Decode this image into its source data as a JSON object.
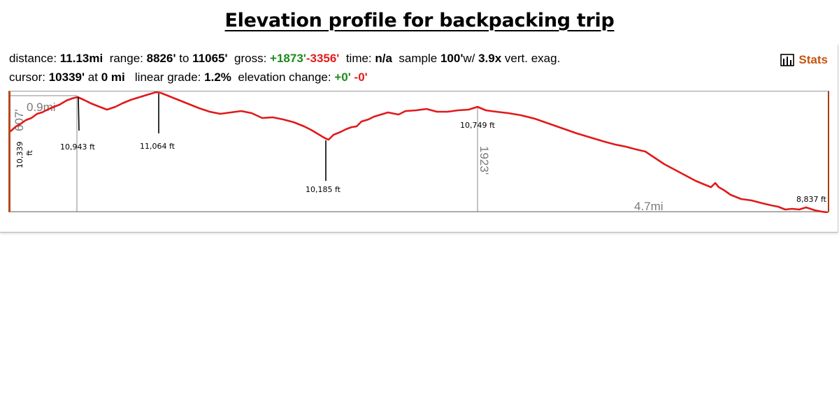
{
  "title": "Elevation profile for backpacking trip",
  "stats": {
    "distance_label": "distance:",
    "distance": "11.13mi",
    "range_label": "range:",
    "range_min": "8826'",
    "range_to": "to",
    "range_max": "11065'",
    "gross_label": "gross:",
    "gross_gain": "+1873'",
    "gross_loss": "-3356'",
    "time_label": "time:",
    "time": "n/a",
    "sample_label": "sample",
    "sample": "100'",
    "sample_w": "w/",
    "exag": "3.9x",
    "exag_label": "vert. exag.",
    "cursor_label": "cursor:",
    "cursor_elev": "10339'",
    "cursor_at": "at",
    "cursor_dist": "0 mi",
    "grade_label": "linear grade:",
    "grade": "1.2%",
    "elev_change_label": "elevation change:",
    "elev_gain": "+0'",
    "elev_loss": "-0'"
  },
  "stats_button": {
    "label": "Stats",
    "icon": "bar-chart-icon",
    "color": "#c85410"
  },
  "measure": {
    "left_height": "607'",
    "left_dist": "0.9mi",
    "right_height": "1923'",
    "right_dist": "4.7mi"
  },
  "annotations": {
    "start": "10,339 ft",
    "start_a": "10,339",
    "start_b": "ft",
    "peak1": "10,943 ft",
    "peak2": "11,064 ft",
    "valley": "10,185 ft",
    "mid": "10,749 ft",
    "end": "8,837 ft"
  },
  "colors": {
    "profile_line": "#e01a1a",
    "gain": "#1e8a1e",
    "loss": "#e21b1b",
    "measure_gray": "#7a7a7a"
  }
}
